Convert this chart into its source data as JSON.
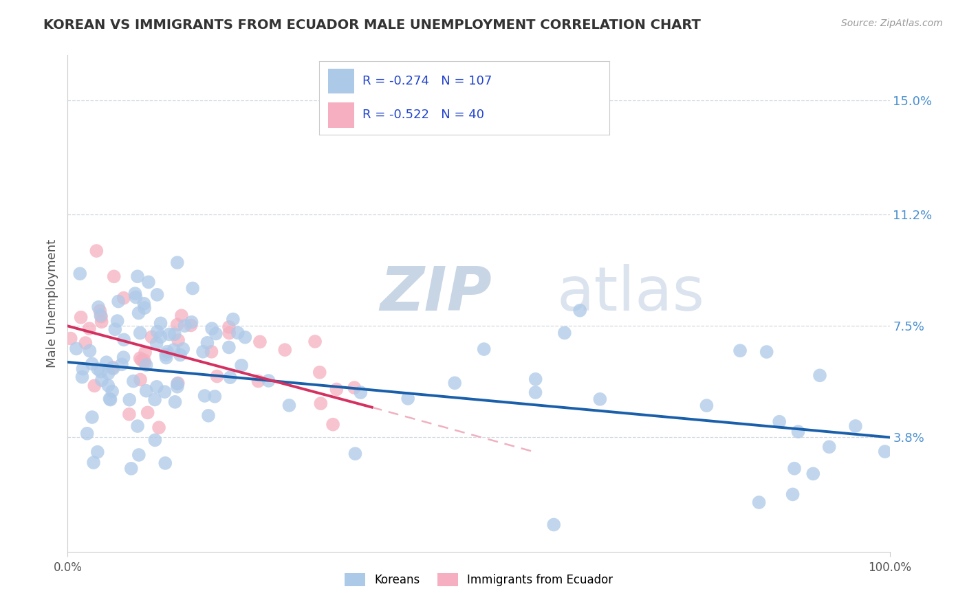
{
  "title": "KOREAN VS IMMIGRANTS FROM ECUADOR MALE UNEMPLOYMENT CORRELATION CHART",
  "source_text": "Source: ZipAtlas.com",
  "ylabel": "Male Unemployment",
  "x_min": 0.0,
  "x_max": 100.0,
  "y_min": 0.0,
  "y_max": 16.5,
  "y_ticks": [
    3.8,
    7.5,
    11.2,
    15.0
  ],
  "korean_R": "-0.274",
  "korean_N": "107",
  "ecuador_R": "-0.522",
  "ecuador_N": "40",
  "korean_color": "#adc9e8",
  "ecuador_color": "#f5afc0",
  "korean_line_color": "#1a5faa",
  "ecuador_line_color": "#d43060",
  "ecuador_dash_color": "#f0b0c0",
  "watermark_zip": "ZIP",
  "watermark_atlas": "atlas",
  "watermark_color": "#d0dcea",
  "background_color": "#ffffff",
  "grid_color": "#d0d8e0",
  "legend_korean_label": "Koreans",
  "legend_ecuador_label": "Immigrants from Ecuador",
  "blue_line_x0": 0,
  "blue_line_y0": 6.3,
  "blue_line_x1": 100,
  "blue_line_y1": 3.8,
  "pink_line_x0": 0,
  "pink_line_y0": 7.5,
  "pink_line_x1": 37,
  "pink_line_y1": 4.8,
  "pink_dash_x0": 37,
  "pink_dash_y0": 4.8,
  "pink_dash_x1": 57,
  "pink_dash_y1": 3.3
}
